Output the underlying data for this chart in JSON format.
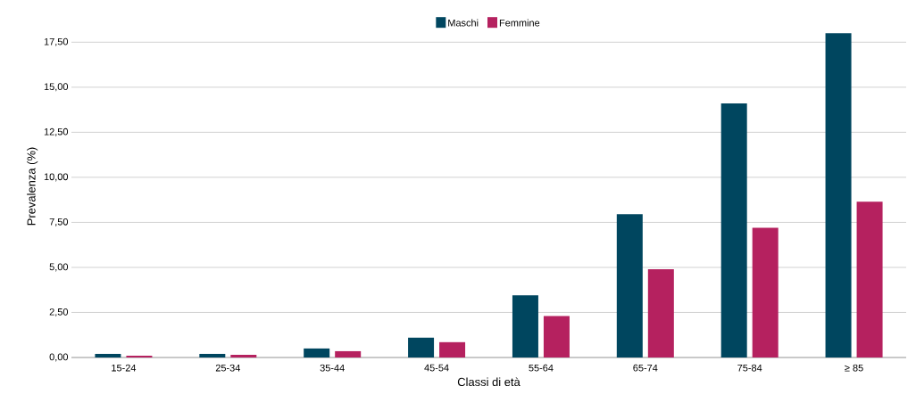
{
  "chart_data": {
    "type": "bar",
    "xlabel": "Classi di età",
    "ylabel": "Prevalenza (%)",
    "categories": [
      "15-24",
      "25-34",
      "35-44",
      "45-54",
      "55-64",
      "65-74",
      "75-84",
      "≥ 85"
    ],
    "series": [
      {
        "name": "Maschi",
        "color": "#00465f",
        "values": [
          0.2,
          0.2,
          0.5,
          1.1,
          3.45,
          7.95,
          14.1,
          18.0
        ]
      },
      {
        "name": "Femmine",
        "color": "#b5215f",
        "values": [
          0.1,
          0.15,
          0.35,
          0.85,
          2.3,
          4.9,
          7.2,
          8.65
        ]
      }
    ],
    "ylim": [
      0,
      19
    ],
    "yticks": [
      {
        "value": 0,
        "label": "0,00"
      },
      {
        "value": 2.5,
        "label": "2,50"
      },
      {
        "value": 5,
        "label": "5,00"
      },
      {
        "value": 7.5,
        "label": "7,50"
      },
      {
        "value": 10,
        "label": "10,00"
      },
      {
        "value": 12.5,
        "label": "12,50"
      },
      {
        "value": 15,
        "label": "15,00"
      },
      {
        "value": 17.5,
        "label": "17,50"
      }
    ],
    "grid": "y",
    "legend": "top"
  }
}
